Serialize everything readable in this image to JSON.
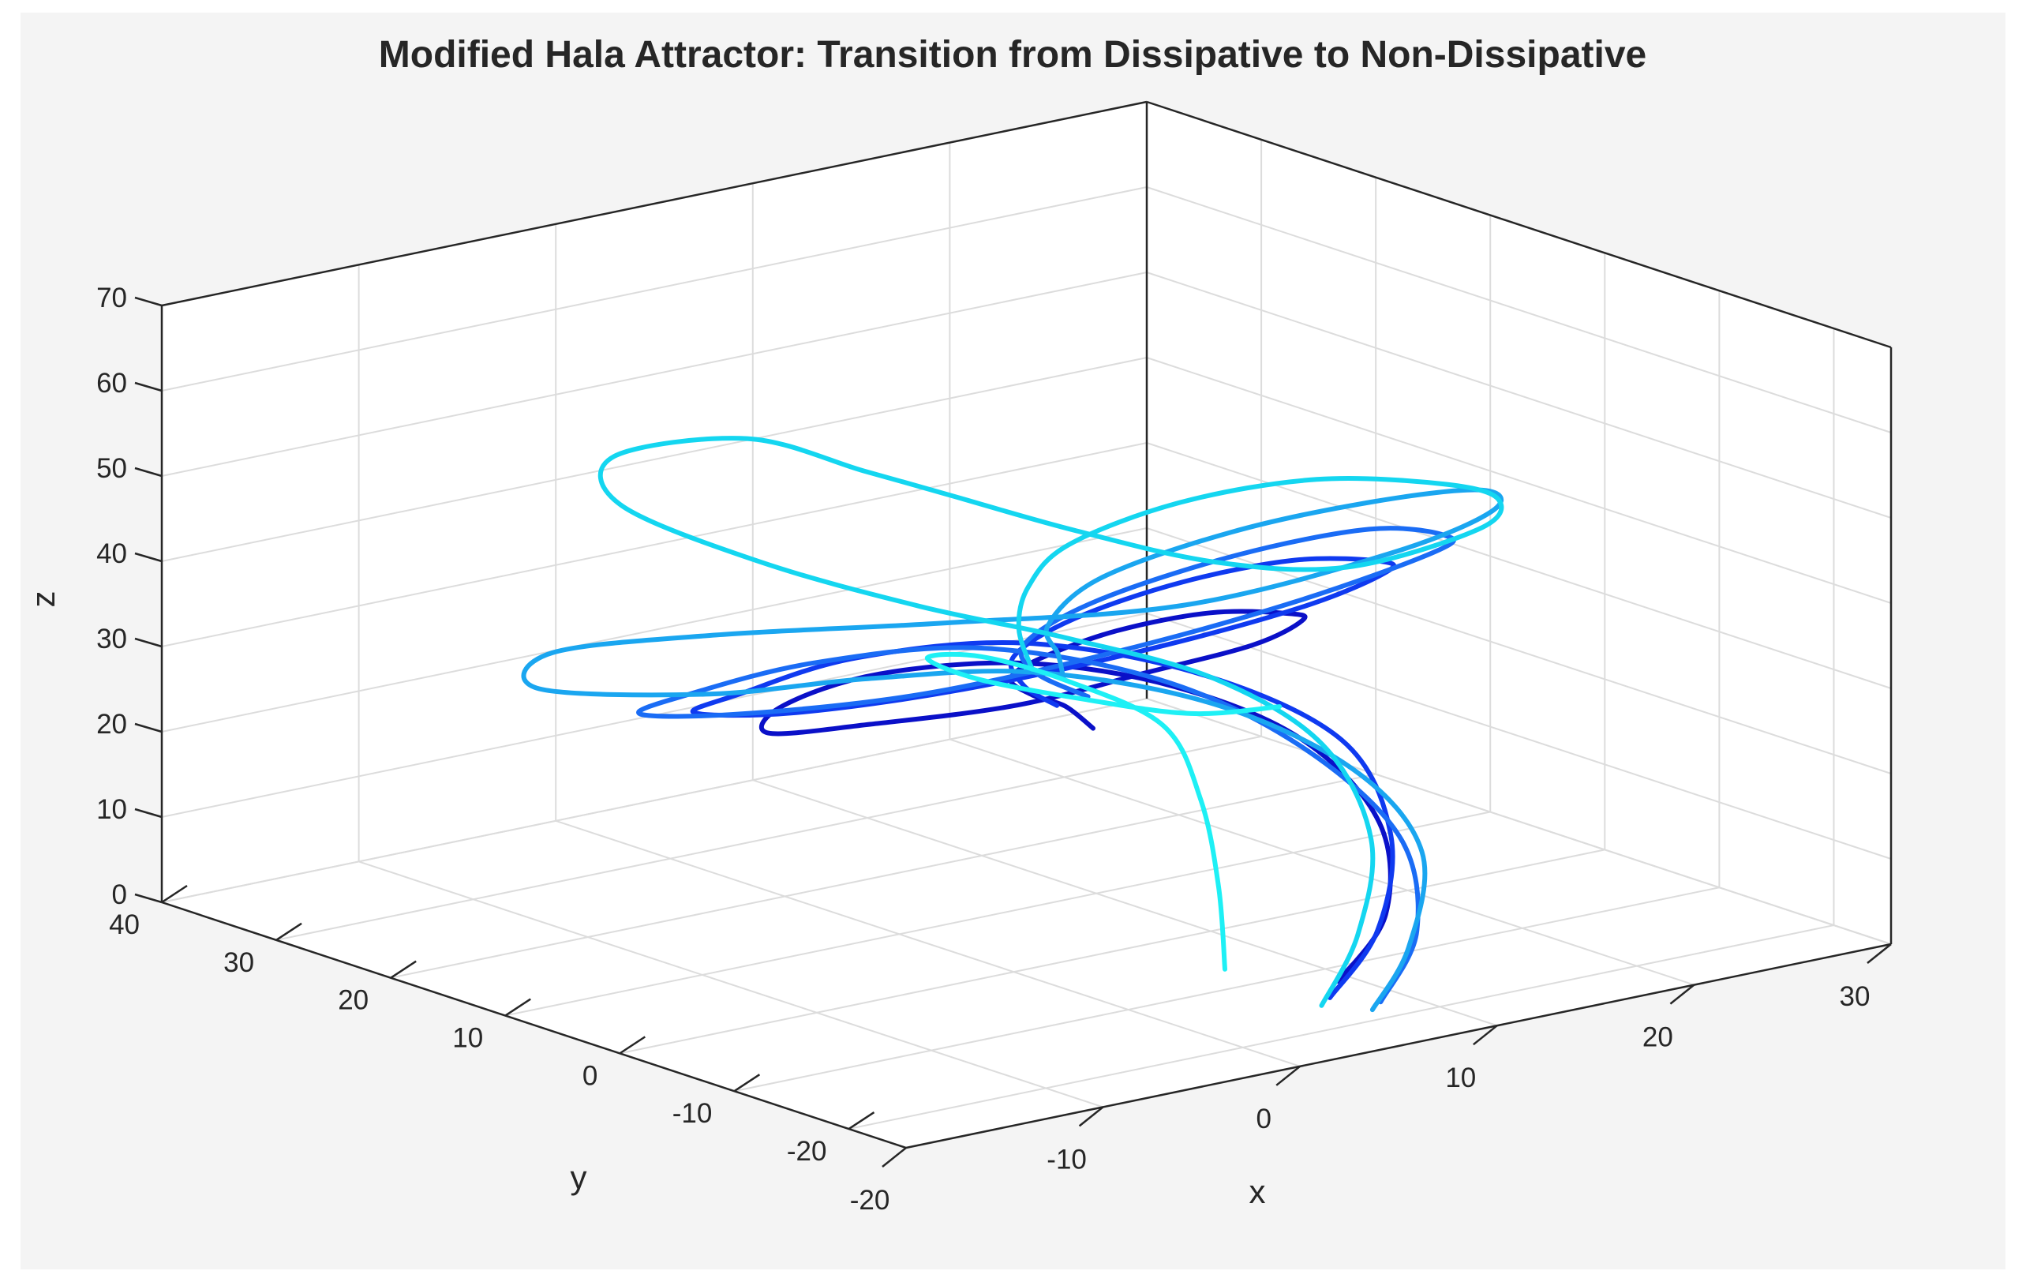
{
  "chart_data": {
    "type": "line3d",
    "title": "Modified Hala Attractor: Transition from Dissipative to Non-Dissipative",
    "xlabel": "x",
    "ylabel": "y",
    "zlabel": "z",
    "xlim": [
      -20,
      30
    ],
    "ylim": [
      -25,
      40
    ],
    "zlim": [
      0,
      70
    ],
    "xticks": [
      "-20",
      "-10",
      "0",
      "10",
      "20",
      "30"
    ],
    "yticks": [
      "-20",
      "-10",
      "0",
      "10",
      "20",
      "30",
      "40"
    ],
    "zticks": [
      "0",
      "10",
      "20",
      "30",
      "40",
      "50",
      "60",
      "70"
    ],
    "grid": true,
    "colormap": [
      "#0a10c8",
      "#0f3af0",
      "#1a6cf5",
      "#1aa6f0",
      "#14d6f0",
      "#1ef0f5"
    ],
    "series": [
      {
        "color": "#0a10c8",
        "points": [
          [
            6,
            -18,
            4
          ],
          [
            9,
            -17,
            10
          ],
          [
            11,
            -13,
            18
          ],
          [
            10,
            -8,
            26
          ],
          [
            7,
            -2,
            31
          ],
          [
            3,
            4,
            33
          ],
          [
            -1,
            10,
            31
          ],
          [
            -3,
            15,
            26
          ],
          [
            -2,
            18,
            21
          ],
          [
            2,
            16,
            21
          ],
          [
            6,
            10,
            24
          ],
          [
            9,
            4,
            29
          ],
          [
            11,
            -2,
            34
          ],
          [
            10,
            -8,
            40
          ],
          [
            7,
            -12,
            44
          ],
          [
            3,
            -12,
            46
          ],
          [
            0,
            -9,
            44
          ],
          [
            -1,
            -4,
            39
          ],
          [
            1,
            2,
            33
          ],
          [
            5,
            7,
            27
          ],
          [
            9,
            11,
            22
          ],
          [
            11,
            12,
            18
          ]
        ]
      },
      {
        "color": "#0f3af0",
        "points": [
          [
            5,
            -19,
            3
          ],
          [
            8,
            -18,
            9
          ],
          [
            11,
            -14,
            17
          ],
          [
            12,
            -8,
            25
          ],
          [
            9,
            -1,
            31
          ],
          [
            4,
            6,
            34
          ],
          [
            -1,
            12,
            32
          ],
          [
            -4,
            17,
            27
          ],
          [
            -4,
            21,
            23
          ],
          [
            0,
            19,
            22
          ],
          [
            5,
            13,
            25
          ],
          [
            10,
            5,
            31
          ],
          [
            13,
            -3,
            38
          ],
          [
            13,
            -10,
            45
          ],
          [
            10,
            -15,
            50
          ],
          [
            5,
            -16,
            53
          ],
          [
            1,
            -13,
            51
          ],
          [
            -1,
            -7,
            45
          ],
          [
            0,
            0,
            37
          ],
          [
            4,
            6,
            29
          ],
          [
            8,
            10,
            23
          ]
        ]
      },
      {
        "color": "#1a6cf5",
        "points": [
          [
            7,
            -20,
            2
          ],
          [
            10,
            -18,
            8
          ],
          [
            12,
            -13,
            16
          ],
          [
            11,
            -6,
            24
          ],
          [
            8,
            1,
            30
          ],
          [
            3,
            8,
            33
          ],
          [
            -2,
            14,
            31
          ],
          [
            -5,
            20,
            26
          ],
          [
            -5,
            24,
            22
          ],
          [
            -1,
            22,
            21
          ],
          [
            4,
            15,
            24
          ],
          [
            9,
            7,
            30
          ],
          [
            13,
            -2,
            38
          ],
          [
            15,
            -11,
            47
          ],
          [
            12,
            -17,
            53
          ],
          [
            7,
            -19,
            57
          ],
          [
            2,
            -16,
            55
          ],
          [
            -1,
            -9,
            48
          ],
          [
            0,
            -1,
            39
          ],
          [
            4,
            5,
            31
          ],
          [
            9,
            9,
            24
          ]
        ]
      },
      {
        "color": "#1aa6f0",
        "points": [
          [
            6,
            -21,
            2
          ],
          [
            9,
            -19,
            7
          ],
          [
            12,
            -15,
            15
          ],
          [
            12,
            -9,
            22
          ],
          [
            9,
            -2,
            28
          ],
          [
            4,
            5,
            31
          ],
          [
            -1,
            11,
            30
          ],
          [
            -5,
            18,
            27
          ],
          [
            -9,
            26,
            26
          ],
          [
            -6,
            30,
            27
          ],
          [
            0,
            26,
            28
          ],
          [
            6,
            16,
            31
          ],
          [
            11,
            4,
            36
          ],
          [
            15,
            -7,
            45
          ],
          [
            15,
            -16,
            54
          ],
          [
            11,
            -22,
            61
          ],
          [
            5,
            -23,
            63
          ],
          [
            0,
            -19,
            60
          ],
          [
            -2,
            -11,
            52
          ],
          [
            0,
            -3,
            42
          ],
          [
            4,
            3,
            34
          ],
          [
            6,
            6,
            29
          ]
        ]
      },
      {
        "color": "#14d6f0",
        "points": [
          [
            4,
            -20,
            3
          ],
          [
            7,
            -18,
            9
          ],
          [
            10,
            -14,
            17
          ],
          [
            11,
            -8,
            25
          ],
          [
            9,
            -2,
            31
          ],
          [
            5,
            4,
            35
          ],
          [
            1,
            10,
            38
          ],
          [
            -3,
            17,
            42
          ],
          [
            -6,
            24,
            47
          ],
          [
            -4,
            28,
            50
          ],
          [
            1,
            25,
            51
          ],
          [
            4,
            20,
            48
          ],
          [
            6,
            16,
            46
          ],
          [
            9,
            10,
            43
          ],
          [
            12,
            3,
            41
          ],
          [
            14,
            -5,
            43
          ],
          [
            16,
            -13,
            50
          ],
          [
            13,
            -20,
            58
          ],
          [
            8,
            -24,
            64
          ],
          [
            2,
            -23,
            67
          ],
          [
            -2,
            -18,
            64
          ],
          [
            -3,
            -10,
            56
          ],
          [
            -1,
            -3,
            47
          ],
          [
            2,
            3,
            38
          ],
          [
            5,
            7,
            30
          ]
        ]
      },
      {
        "color": "#1ef0f5",
        "points": [
          [
            2,
            -15,
            6
          ],
          [
            4,
            -11,
            13
          ],
          [
            6,
            -6,
            20
          ],
          [
            7,
            -1,
            26
          ],
          [
            5,
            4,
            30
          ],
          [
            3,
            8,
            32
          ],
          [
            2,
            11,
            31
          ],
          [
            4,
            10,
            28
          ],
          [
            7,
            6,
            26
          ],
          [
            9,
            0,
            26
          ],
          [
            10,
            -6,
            29
          ]
        ]
      }
    ]
  }
}
